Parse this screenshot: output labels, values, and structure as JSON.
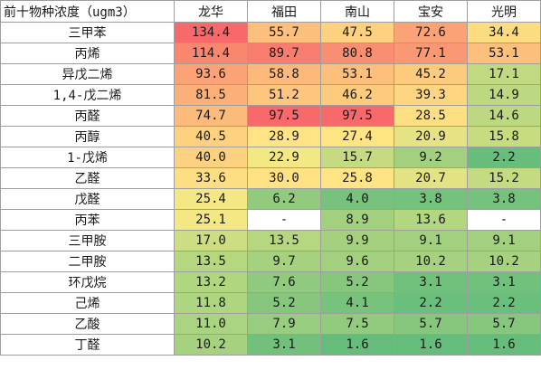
{
  "table": {
    "corner_header": "前十物种浓度（ugm3）",
    "districts": [
      "龙华",
      "福田",
      "南山",
      "宝安",
      "光明"
    ],
    "rows": [
      {
        "name": "三甲苯",
        "values": [
          "134.4",
          "55.7",
          "47.5",
          "72.6",
          "34.4"
        ]
      },
      {
        "name": "丙烯",
        "values": [
          "114.4",
          "89.7",
          "80.8",
          "77.1",
          "53.1"
        ]
      },
      {
        "name": "异戊二烯",
        "values": [
          "93.6",
          "58.8",
          "53.1",
          "45.2",
          "17.1"
        ]
      },
      {
        "name": "1,4-戊二烯",
        "values": [
          "81.5",
          "51.2",
          "46.2",
          "39.3",
          "14.9"
        ]
      },
      {
        "name": "丙醛",
        "values": [
          "74.7",
          "97.5",
          "97.5",
          "28.5",
          "14.6"
        ]
      },
      {
        "name": "丙醇",
        "values": [
          "40.5",
          "28.9",
          "27.4",
          "20.9",
          "15.8"
        ]
      },
      {
        "name": "1-戊烯",
        "values": [
          "40.0",
          "22.9",
          "15.7",
          "9.2",
          "2.2"
        ]
      },
      {
        "name": "乙醛",
        "values": [
          "33.6",
          "30.0",
          "25.8",
          "20.7",
          "15.2"
        ]
      },
      {
        "name": "戊醛",
        "values": [
          "25.4",
          "6.2",
          "4.0",
          "3.8",
          "3.8"
        ]
      },
      {
        "name": "丙苯",
        "values": [
          "25.1",
          "-",
          "8.9",
          "13.6",
          "-"
        ]
      },
      {
        "name": "三甲胺",
        "values": [
          "17.0",
          "13.5",
          "9.9",
          "9.1",
          "9.1"
        ]
      },
      {
        "name": "二甲胺",
        "values": [
          "13.5",
          "9.7",
          "9.6",
          "10.2",
          "10.2"
        ]
      },
      {
        "name": "环戊烷",
        "values": [
          "13.2",
          "7.6",
          "5.2",
          "3.1",
          "3.1"
        ]
      },
      {
        "name": "己烯",
        "values": [
          "11.8",
          "5.2",
          "4.1",
          "2.2",
          "2.2"
        ]
      },
      {
        "name": "乙酸",
        "values": [
          "11.0",
          "7.9",
          "7.5",
          "5.7",
          "5.7"
        ]
      },
      {
        "name": "丁醛",
        "values": [
          "10.2",
          "3.1",
          "1.6",
          "1.6",
          "1.6"
        ]
      }
    ],
    "cell_colors": [
      [
        "#F8696B",
        "#FDC07C",
        "#FDD17F",
        "#FBA276",
        "#FCDB81"
      ],
      [
        "#F98770",
        "#F97D6E",
        "#FA8E72",
        "#FB9874",
        "#FDC07C"
      ],
      [
        "#FBA376",
        "#FDB97A",
        "#FDC07C",
        "#FDCB7E",
        "#C1DA81"
      ],
      [
        "#FCB079",
        "#FDC57D",
        "#FDCB7E",
        "#FED580",
        "#BCD881"
      ],
      [
        "#FCBB7B",
        "#F8696B",
        "#F8696B",
        "#FEE082",
        "#BCD881"
      ],
      [
        "#FDD17F",
        "#FFE384",
        "#FFE484",
        "#E5E383",
        "#C7DB81"
      ],
      [
        "#FDD17F",
        "#F2E884",
        "#C6DB81",
        "#A2D07F",
        "#67BE7B"
      ],
      [
        "#FEDE82",
        "#FFE283",
        "#FFE384",
        "#E4E383",
        "#C5DB81"
      ],
      [
        "#F4E884",
        "#92CB7E",
        "#77C27C",
        "#75C27C",
        "#75C27C"
      ],
      [
        "#F3E884",
        "#FFFFFF",
        "#A3D07F",
        "#B3D680",
        "#FFFFFF"
      ],
      [
        "#CDDD82",
        "#B4D780",
        "#A5D17F",
        "#A2D07F",
        "#A2D07F"
      ],
      [
        "#B4D780",
        "#A6D17F",
        "#A3D07F",
        "#A6D17F",
        "#A6D17F"
      ],
      [
        "#B1D680",
        "#8FCA7E",
        "#86C67D",
        "#71C07C",
        "#71C07C"
      ],
      [
        "#AED580",
        "#86C67D",
        "#78C37C",
        "#69BF7B",
        "#69BF7B"
      ],
      [
        "#AAD47F",
        "#98CD7F",
        "#93CB7E",
        "#86C67D",
        "#86C67D"
      ],
      [
        "#A6D17F",
        "#71C07C",
        "#66BD7B",
        "#66BD7B",
        "#66BD7B"
      ]
    ]
  }
}
